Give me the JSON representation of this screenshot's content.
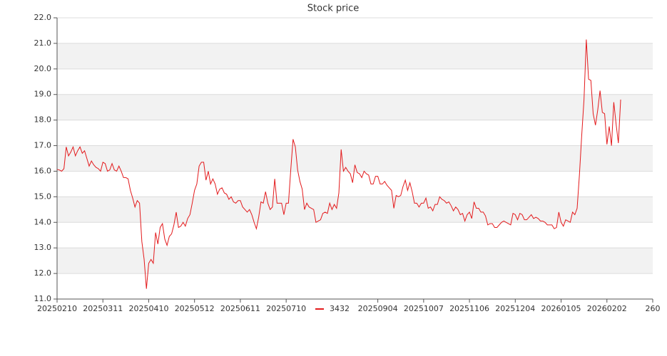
{
  "chart_data": {
    "type": "line",
    "title": "Stock price",
    "x": [
      0,
      1,
      2,
      3,
      4,
      5,
      6,
      7,
      8,
      9,
      10,
      11,
      12,
      13,
      14,
      15,
      16,
      17,
      18,
      19,
      20,
      21,
      22,
      23,
      24,
      25,
      26,
      27,
      28,
      29,
      30,
      31,
      32,
      33,
      34,
      35,
      36,
      37,
      38,
      39,
      40,
      41,
      42,
      43,
      44,
      45,
      46,
      47,
      48,
      49,
      50,
      51,
      52,
      53,
      54,
      55,
      56,
      57,
      58,
      59,
      60,
      61,
      62,
      63,
      64,
      65,
      66,
      67,
      68,
      69,
      70,
      71,
      72,
      73,
      74,
      75,
      76,
      77,
      78,
      79,
      80,
      81,
      82,
      83,
      84,
      85,
      86,
      87,
      88,
      89,
      90,
      91,
      92,
      93,
      94,
      95,
      96,
      97,
      98,
      99,
      100,
      101,
      102,
      103,
      104,
      105,
      106,
      107,
      108,
      109,
      110,
      111,
      112,
      113,
      114,
      115,
      116,
      117,
      118,
      119,
      120,
      121,
      122,
      123,
      124,
      125,
      126,
      127,
      128,
      129,
      130,
      131,
      132,
      133,
      134,
      135,
      136,
      137,
      138,
      139,
      140,
      141,
      142,
      143,
      144,
      145,
      146,
      147,
      148,
      149,
      150,
      151,
      152,
      153,
      154,
      155,
      156,
      157,
      158,
      159,
      160,
      161,
      162,
      163,
      164,
      165,
      166,
      167,
      168,
      169,
      170,
      171,
      172,
      173,
      174,
      175,
      176,
      177,
      178,
      179,
      180,
      181,
      182,
      183,
      184,
      185,
      186,
      187,
      188,
      189,
      190,
      191,
      192,
      193,
      194,
      195,
      196,
      197,
      198,
      199,
      200,
      201,
      202,
      203,
      204,
      205,
      206,
      207,
      208,
      209,
      210,
      211,
      212,
      213,
      214,
      215,
      216,
      217,
      218,
      219,
      220,
      221,
      222,
      223,
      224,
      225,
      226,
      227,
      228,
      229,
      230,
      231,
      232,
      233,
      234,
      235,
      236,
      237,
      238,
      239,
      240,
      241,
      242,
      243,
      244,
      245,
      246
    ],
    "series": [
      {
        "name": "3432",
        "color": "#e31a1c",
        "values": [
          16.07,
          16.05,
          16.0,
          16.1,
          16.95,
          16.6,
          16.75,
          16.95,
          16.6,
          16.8,
          16.95,
          16.7,
          16.8,
          16.5,
          16.2,
          16.4,
          16.25,
          16.15,
          16.1,
          16.0,
          16.35,
          16.3,
          16.0,
          16.05,
          16.3,
          16.05,
          16.0,
          16.2,
          16.0,
          15.75,
          15.75,
          15.7,
          15.25,
          14.95,
          14.6,
          14.85,
          14.75,
          13.25,
          12.55,
          11.4,
          12.4,
          12.55,
          12.4,
          13.6,
          13.15,
          13.8,
          13.95,
          13.35,
          13.1,
          13.45,
          13.55,
          13.9,
          14.4,
          13.8,
          13.85,
          14.0,
          13.85,
          14.15,
          14.3,
          14.75,
          15.25,
          15.5,
          16.2,
          16.35,
          16.35,
          15.65,
          16.0,
          15.5,
          15.7,
          15.5,
          15.1,
          15.3,
          15.35,
          15.15,
          15.1,
          14.9,
          15.0,
          14.8,
          14.75,
          14.85,
          14.85,
          14.6,
          14.5,
          14.4,
          14.5,
          14.3,
          14.0,
          13.75,
          14.2,
          14.8,
          14.75,
          15.2,
          14.75,
          14.5,
          14.6,
          15.7,
          14.75,
          14.75,
          14.75,
          14.3,
          14.75,
          14.75,
          16.05,
          17.25,
          16.95,
          16.05,
          15.6,
          15.3,
          14.5,
          14.75,
          14.6,
          14.55,
          14.5,
          14.0,
          14.05,
          14.1,
          14.35,
          14.4,
          14.35,
          14.75,
          14.5,
          14.7,
          14.55,
          15.15,
          16.85,
          16.0,
          16.15,
          16.0,
          15.9,
          15.55,
          16.25,
          15.95,
          15.9,
          15.75,
          16.0,
          15.9,
          15.85,
          15.5,
          15.5,
          15.8,
          15.8,
          15.5,
          15.5,
          15.6,
          15.45,
          15.35,
          15.25,
          14.55,
          15.05,
          15.0,
          15.05,
          15.4,
          15.65,
          15.25,
          15.55,
          15.2,
          14.75,
          14.75,
          14.6,
          14.75,
          14.75,
          14.95,
          14.55,
          14.6,
          14.45,
          14.7,
          14.7,
          15.0,
          14.9,
          14.85,
          14.75,
          14.8,
          14.65,
          14.45,
          14.6,
          14.5,
          14.3,
          14.35,
          14.05,
          14.3,
          14.4,
          14.15,
          14.8,
          14.55,
          14.55,
          14.4,
          14.4,
          14.25,
          13.9,
          13.95,
          13.95,
          13.8,
          13.8,
          13.9,
          14.0,
          14.05,
          14.0,
          13.95,
          13.9,
          14.35,
          14.3,
          14.1,
          14.35,
          14.3,
          14.1,
          14.1,
          14.2,
          14.3,
          14.15,
          14.2,
          14.15,
          14.05,
          14.05,
          14.0,
          13.9,
          13.9,
          13.9,
          13.75,
          13.8,
          14.4,
          14.0,
          13.85,
          14.1,
          14.05,
          14.0,
          14.4,
          14.3,
          14.55,
          15.85,
          17.4,
          18.8,
          21.15,
          19.6,
          19.55,
          18.25,
          17.8,
          18.4,
          19.15,
          18.3,
          18.25,
          17.05,
          17.75,
          17.0,
          18.7,
          17.85,
          17.1,
          18.8
        ]
      }
    ],
    "xlim": [
      0,
      260
    ],
    "xticks": [
      {
        "value": 0,
        "label": "20250210"
      },
      {
        "value": 20,
        "label": "20250311"
      },
      {
        "value": 40,
        "label": "20250410"
      },
      {
        "value": 60,
        "label": "20250512"
      },
      {
        "value": 80,
        "label": "20250611"
      },
      {
        "value": 100,
        "label": "20250710"
      },
      {
        "value": 140,
        "label": "20250904"
      },
      {
        "value": 160,
        "label": "20251007"
      },
      {
        "value": 180,
        "label": "20251106"
      },
      {
        "value": 200,
        "label": "20251204"
      },
      {
        "value": 220,
        "label": "20260105"
      },
      {
        "value": 240,
        "label": "20260202"
      },
      260
    ],
    "ylim": [
      11,
      22
    ],
    "yticks": [
      {
        "value": 11,
        "label": "11.0"
      },
      {
        "value": 12,
        "label": "12.0"
      },
      {
        "value": 13,
        "label": "13.0"
      },
      {
        "value": 14,
        "label": "14.0"
      },
      {
        "value": 15,
        "label": "15.0"
      },
      {
        "value": 16,
        "label": "16.0"
      },
      {
        "value": 17,
        "label": "17.0"
      },
      {
        "value": 18,
        "label": "18.0"
      },
      {
        "value": 19,
        "label": "19.0"
      },
      {
        "value": 20,
        "label": "20.0"
      },
      {
        "value": 21,
        "label": "21.0"
      },
      {
        "value": 22,
        "label": "22.0"
      }
    ],
    "grid": true,
    "legend": "bottom"
  }
}
